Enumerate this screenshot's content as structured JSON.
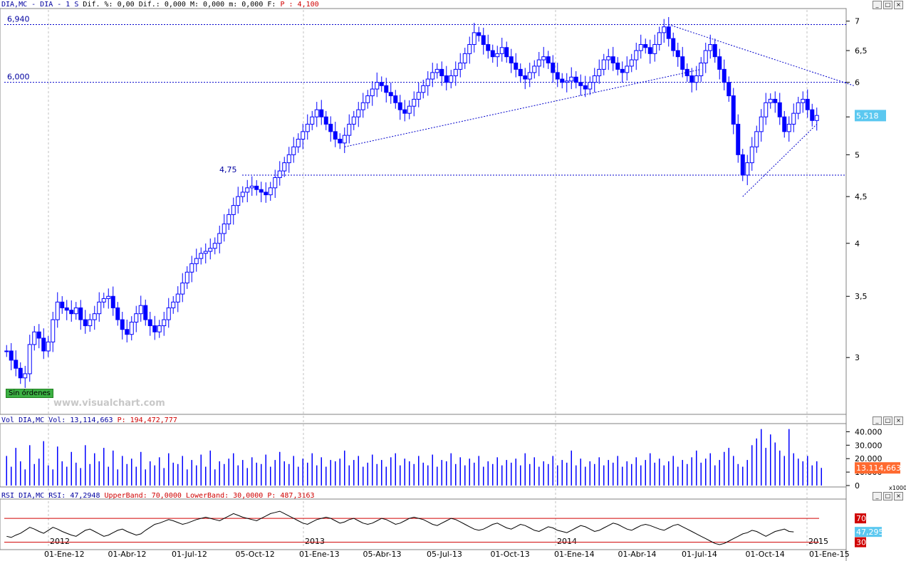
{
  "price_header": {
    "symbol": "DIA,MC - DIA -  1 S",
    "dif_label": "Dif.",
    "pct_label": "%: 0,00",
    "dif2": "Dif.: 0,000",
    "m1": "M: 0,000",
    "m2": "m: 0,000",
    "f_label": "F:",
    "p_value": "P : 4,100"
  },
  "volume_header": {
    "label": "Vol_DIA,MC Vol: 13,114,663",
    "p_value": "P: 194,472,777"
  },
  "rsi_header": {
    "label": "RSI_DIA,MC RSI: 47,2948",
    "upper": "UpperBand: 70,0000",
    "lower": "LowerBand: 30,0000",
    "p_value": "P: 487,3163"
  },
  "sin_ordenes": "Sin órdenes",
  "watermark": "www.visualchart.com",
  "colors": {
    "candle": "#0000ff",
    "grid": "#c0c0c0",
    "hline": "#0000cc",
    "rsi_band": "#d00000",
    "last_price": "#5bc8f0",
    "last_vol": "#ff6a30"
  },
  "chart_data": [
    {
      "type": "candlestick",
      "pane": "price",
      "y_ticks": [
        "7",
        "6,5",
        "6",
        "5,5",
        "5",
        "4,5",
        "4",
        "3,5",
        "3"
      ],
      "ylim": [
        2.6,
        7.2
      ],
      "scale": "log",
      "hlines": [
        {
          "value": 6.94,
          "label": "6,940"
        },
        {
          "value": 6.0,
          "label": "6,000"
        },
        {
          "value": 4.75,
          "label": "4,75"
        }
      ],
      "last_price": {
        "value": 5.518,
        "label": "5,518"
      },
      "x_labels": [
        "01-Ene-12",
        "01-Abr-12",
        "01-Jul-12",
        "05-Oct-12",
        "01-Ene-13",
        "05-Abr-13",
        "05-Jul-13",
        "01-Oct-13",
        "01-Ene-14",
        "01-Abr-14",
        "01-Jul-14",
        "01-Oct-14",
        "01-Ene-15"
      ],
      "year_labels": [
        "2012",
        "2013",
        "2014",
        "2015"
      ],
      "close_series": [
        3.05,
        2.98,
        2.92,
        2.85,
        2.88,
        3.1,
        3.2,
        3.15,
        3.05,
        3.12,
        3.3,
        3.45,
        3.4,
        3.38,
        3.35,
        3.4,
        3.3,
        3.25,
        3.3,
        3.35,
        3.45,
        3.48,
        3.5,
        3.4,
        3.3,
        3.22,
        3.18,
        3.28,
        3.35,
        3.42,
        3.3,
        3.25,
        3.2,
        3.25,
        3.3,
        3.4,
        3.45,
        3.52,
        3.62,
        3.72,
        3.8,
        3.85,
        3.9,
        3.92,
        3.95,
        4.0,
        4.1,
        4.2,
        4.3,
        4.4,
        4.5,
        4.55,
        4.6,
        4.62,
        4.58,
        4.55,
        4.52,
        4.6,
        4.72,
        4.8,
        4.9,
        5.0,
        5.1,
        5.2,
        5.3,
        5.4,
        5.5,
        5.6,
        5.5,
        5.4,
        5.3,
        5.2,
        5.15,
        5.25,
        5.4,
        5.5,
        5.6,
        5.7,
        5.8,
        5.9,
        6.0,
        5.95,
        5.85,
        5.8,
        5.7,
        5.6,
        5.55,
        5.65,
        5.75,
        5.85,
        5.95,
        6.05,
        6.15,
        6.2,
        6.1,
        6.0,
        6.1,
        6.2,
        6.3,
        6.45,
        6.6,
        6.8,
        6.75,
        6.6,
        6.5,
        6.4,
        6.45,
        6.55,
        6.4,
        6.3,
        6.2,
        6.1,
        6.05,
        6.15,
        6.25,
        6.35,
        6.4,
        6.3,
        6.15,
        6.05,
        6.0,
        6.02,
        6.08,
        6.0,
        5.95,
        5.9,
        6.0,
        6.1,
        6.2,
        6.35,
        6.4,
        6.3,
        6.2,
        6.15,
        6.25,
        6.35,
        6.5,
        6.6,
        6.55,
        6.45,
        6.6,
        6.8,
        6.9,
        6.7,
        6.5,
        6.4,
        6.2,
        6.1,
        6.0,
        6.1,
        6.3,
        6.5,
        6.6,
        6.4,
        6.2,
        6.0,
        5.8,
        5.4,
        5.0,
        4.75,
        4.9,
        5.1,
        5.3,
        5.5,
        5.7,
        5.75,
        5.7,
        5.5,
        5.3,
        5.4,
        5.55,
        5.7,
        5.75,
        5.6,
        5.45,
        5.52
      ]
    },
    {
      "type": "bar",
      "pane": "volume",
      "y_ticks": [
        "40.000",
        "30.000",
        "20.000",
        "10.000",
        "0"
      ],
      "ylim": [
        0,
        45000
      ],
      "unit": "x1000",
      "last_value": {
        "value": 13114.663,
        "label": "13.114,663"
      },
      "values": [
        22000,
        14000,
        28000,
        18000,
        12000,
        30000,
        16000,
        20000,
        33000,
        15000,
        12000,
        29000,
        18000,
        14000,
        25000,
        17000,
        13000,
        30000,
        16000,
        24000,
        18000,
        28000,
        14000,
        26000,
        12000,
        22000,
        16000,
        20000,
        14000,
        25000,
        12000,
        18000,
        15000,
        21000,
        13000,
        24000,
        17000,
        16000,
        22000,
        12000,
        19000,
        15000,
        23000,
        14000,
        26000,
        12000,
        18000,
        16000,
        20000,
        24000,
        15000,
        19000,
        13000,
        21000,
        17000,
        16000,
        23000,
        14000,
        19000,
        25000,
        18000,
        16000,
        22000,
        14000,
        20000,
        17000,
        24000,
        15000,
        21000,
        14000,
        19000,
        18000,
        20000,
        26000,
        15000,
        19000,
        22000,
        14000,
        17000,
        23000,
        16000,
        19000,
        14000,
        21000,
        24000,
        15000,
        20000,
        18000,
        16000,
        22000,
        17000,
        15000,
        23000,
        14000,
        19000,
        18000,
        24000,
        16000,
        21000,
        15000,
        20000,
        17000,
        22000,
        14000,
        18000,
        16000,
        21000,
        15000,
        19000,
        17000,
        20000,
        15000,
        24000,
        16000,
        21000,
        14000,
        18000,
        16000,
        22000,
        15000,
        19000,
        17000,
        26000,
        15000,
        20000,
        14000,
        18000,
        16000,
        21000,
        15000,
        19000,
        17000,
        22000,
        14000,
        18000,
        16000,
        21000,
        15000,
        19000,
        24000,
        17000,
        20000,
        15000,
        18000,
        22000,
        14000,
        19000,
        16000,
        21000,
        26000,
        17000,
        20000,
        24000,
        15000,
        19000,
        25000,
        28000,
        22000,
        16000,
        14000,
        19000,
        30000,
        35000,
        42000,
        28000,
        38000,
        32000,
        26000,
        22000,
        42000,
        24000,
        20000,
        18000,
        22000,
        15000,
        18000,
        13114
      ]
    },
    {
      "type": "line",
      "pane": "rsi",
      "y_ticks": [
        "70",
        "30"
      ],
      "ylim": [
        20,
        100
      ],
      "bands": [
        70,
        30
      ],
      "last_value": {
        "value": 47.295,
        "label": "47,295"
      },
      "values": [
        40,
        38,
        42,
        45,
        50,
        55,
        52,
        48,
        45,
        50,
        55,
        52,
        48,
        45,
        42,
        40,
        45,
        50,
        52,
        48,
        44,
        40,
        42,
        46,
        50,
        52,
        48,
        45,
        42,
        44,
        50,
        55,
        60,
        62,
        65,
        68,
        66,
        63,
        60,
        62,
        65,
        68,
        70,
        72,
        70,
        68,
        66,
        70,
        74,
        78,
        75,
        72,
        70,
        68,
        66,
        70,
        74,
        78,
        80,
        82,
        78,
        74,
        70,
        66,
        62,
        60,
        64,
        68,
        70,
        72,
        70,
        66,
        62,
        64,
        68,
        70,
        66,
        62,
        60,
        62,
        66,
        70,
        68,
        64,
        60,
        62,
        66,
        70,
        72,
        70,
        68,
        64,
        60,
        58,
        62,
        66,
        70,
        68,
        64,
        60,
        56,
        52,
        50,
        52,
        56,
        60,
        62,
        58,
        54,
        52,
        56,
        60,
        58,
        54,
        50,
        48,
        52,
        56,
        54,
        50,
        48,
        46,
        50,
        54,
        58,
        56,
        52,
        48,
        50,
        54,
        58,
        62,
        60,
        56,
        52,
        50,
        54,
        58,
        60,
        58,
        55,
        52,
        50,
        54,
        58,
        60,
        56,
        52,
        48,
        44,
        40,
        36,
        32,
        28,
        26,
        28,
        32,
        36,
        40,
        44,
        46,
        50,
        48,
        44,
        40,
        44,
        48,
        50,
        52,
        48,
        47.3
      ]
    }
  ]
}
